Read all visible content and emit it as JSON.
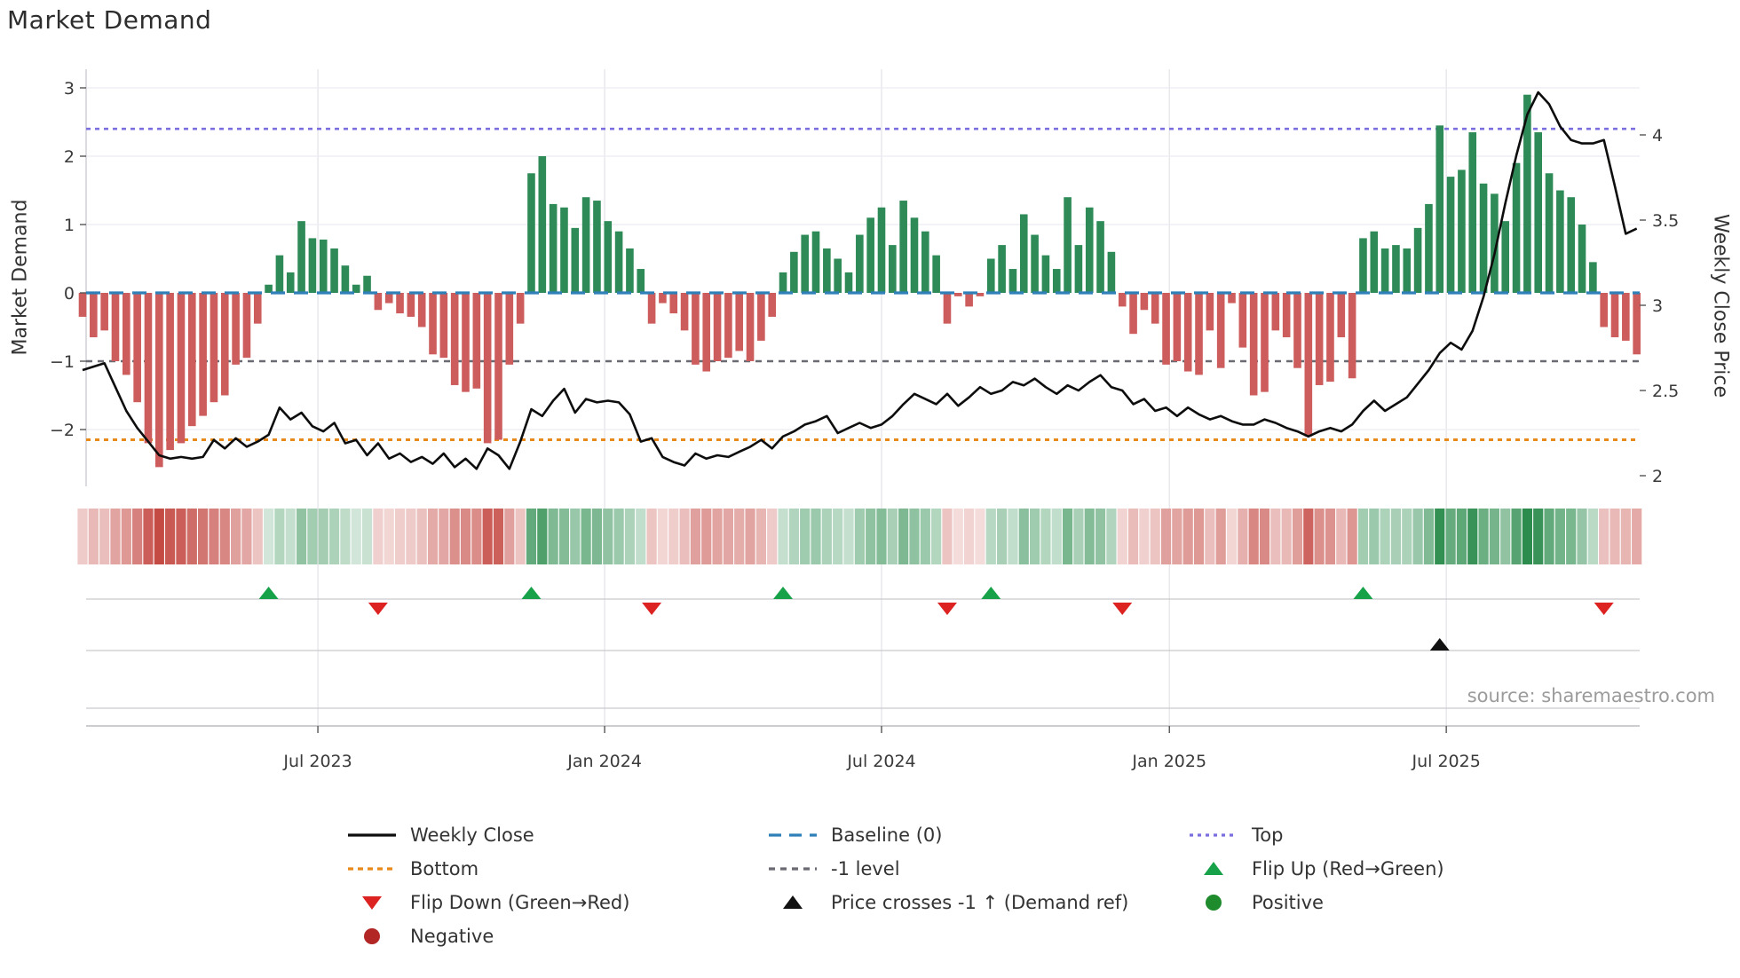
{
  "title": "Market Demand",
  "source_text": "source: sharemaestro.com",
  "chart_data": {
    "type": "bar+line",
    "title": "Market Demand",
    "ylabel_left": "Market Demand",
    "ylabel_right": "Weekly Close Price",
    "grid": true,
    "legend_position": "bottom",
    "ylim_left": [
      -2.83,
      3.27
    ],
    "ylim_right": [
      1.93,
      4.39
    ],
    "yticks_left": [
      "3",
      "2",
      "1",
      "0",
      "−1",
      "−2"
    ],
    "yticks_left_values": [
      3,
      2,
      1,
      0,
      -1,
      -2
    ],
    "yticks_right": [
      "4",
      "3.5",
      "3",
      "2.5",
      "2"
    ],
    "yticks_right_values": [
      4,
      3.5,
      3,
      2.5,
      2
    ],
    "x_axis": {
      "tick_labels": [
        "Jul 2023",
        "Jan 2024",
        "Jul 2024",
        "Jan 2025",
        "Jul 2025"
      ],
      "tick_weeks": [
        21.5,
        47.7,
        73.0,
        99.3,
        124.6
      ]
    },
    "levels": {
      "baseline": 0,
      "top": 2.4,
      "bottom": -2.15,
      "minus1": -1
    },
    "series": [
      {
        "name": "Market Demand (weekly bars)",
        "values": [
          -0.35,
          -0.65,
          -0.55,
          -1.0,
          -1.2,
          -1.6,
          -2.2,
          -2.55,
          -2.3,
          -2.2,
          -1.95,
          -1.8,
          -1.6,
          -1.5,
          -1.05,
          -0.95,
          -0.45,
          0.12,
          0.55,
          0.3,
          1.05,
          0.8,
          0.78,
          0.65,
          0.4,
          0.12,
          0.25,
          -0.25,
          -0.15,
          -0.3,
          -0.35,
          -0.5,
          -0.9,
          -0.95,
          -1.35,
          -1.45,
          -1.4,
          -2.2,
          -2.15,
          -1.05,
          -0.45,
          1.75,
          2.0,
          1.3,
          1.25,
          0.95,
          1.4,
          1.35,
          1.05,
          0.9,
          0.65,
          0.35,
          -0.45,
          -0.15,
          -0.3,
          -0.55,
          -1.05,
          -1.15,
          -1.0,
          -0.95,
          -0.85,
          -1.0,
          -0.7,
          -0.35,
          0.3,
          0.6,
          0.85,
          0.9,
          0.65,
          0.5,
          0.3,
          0.85,
          1.1,
          1.25,
          0.7,
          1.35,
          1.1,
          0.9,
          0.55,
          -0.45,
          -0.05,
          -0.2,
          -0.05,
          0.5,
          0.7,
          0.35,
          1.15,
          0.85,
          0.55,
          0.35,
          1.4,
          0.7,
          1.25,
          1.05,
          0.6,
          -0.2,
          -0.6,
          -0.25,
          -0.45,
          -1.05,
          -1.0,
          -1.15,
          -1.2,
          -0.55,
          -1.1,
          -0.15,
          -0.8,
          -1.5,
          -1.45,
          -0.55,
          -0.65,
          -1.1,
          -2.1,
          -1.35,
          -1.3,
          -0.65,
          -1.25,
          0.8,
          0.9,
          0.65,
          0.7,
          0.65,
          0.95,
          1.3,
          2.45,
          1.7,
          1.8,
          2.35,
          1.6,
          1.45,
          1.05,
          1.9,
          2.9,
          2.35,
          1.75,
          1.5,
          1.4,
          1.0,
          0.45,
          -0.5,
          -0.65,
          -0.7,
          -0.9
        ]
      },
      {
        "name": "Weekly Close",
        "values": [
          2.62,
          2.64,
          2.66,
          2.52,
          2.38,
          2.28,
          2.2,
          2.12,
          2.1,
          2.11,
          2.1,
          2.11,
          2.21,
          2.16,
          2.22,
          2.17,
          2.2,
          2.24,
          2.4,
          2.33,
          2.37,
          2.29,
          2.26,
          2.31,
          2.19,
          2.21,
          2.12,
          2.19,
          2.1,
          2.13,
          2.08,
          2.11,
          2.07,
          2.13,
          2.05,
          2.1,
          2.04,
          2.16,
          2.12,
          2.04,
          2.2,
          2.39,
          2.35,
          2.44,
          2.51,
          2.37,
          2.45,
          2.43,
          2.44,
          2.43,
          2.36,
          2.2,
          2.22,
          2.11,
          2.08,
          2.06,
          2.13,
          2.1,
          2.12,
          2.11,
          2.14,
          2.17,
          2.21,
          2.16,
          2.23,
          2.26,
          2.3,
          2.32,
          2.35,
          2.25,
          2.28,
          2.31,
          2.28,
          2.3,
          2.35,
          2.42,
          2.48,
          2.45,
          2.42,
          2.48,
          2.41,
          2.46,
          2.52,
          2.48,
          2.5,
          2.55,
          2.53,
          2.57,
          2.52,
          2.48,
          2.53,
          2.5,
          2.55,
          2.59,
          2.52,
          2.5,
          2.42,
          2.45,
          2.38,
          2.4,
          2.35,
          2.4,
          2.36,
          2.33,
          2.35,
          2.32,
          2.3,
          2.3,
          2.33,
          2.31,
          2.28,
          2.26,
          2.23,
          2.26,
          2.28,
          2.26,
          2.3,
          2.38,
          2.44,
          2.38,
          2.42,
          2.46,
          2.54,
          2.62,
          2.72,
          2.78,
          2.74,
          2.85,
          3.05,
          3.3,
          3.6,
          3.88,
          4.12,
          4.25,
          4.18,
          4.05,
          3.97,
          3.95,
          3.95,
          3.97,
          3.7,
          3.42,
          3.45
        ]
      }
    ],
    "markers": {
      "flip_up_weeks": [
        17,
        41,
        64,
        83,
        117
      ],
      "flip_down_weeks": [
        27,
        52,
        79,
        95,
        139
      ],
      "price_cross_up_weeks": [
        124
      ]
    },
    "heatmap_note": "strip below plot mirrors bar sign/intensity per week"
  },
  "colors": {
    "bar_positive": "#2e8b57",
    "bar_negative": "#cd5c5c",
    "price_line": "#0d0d0d",
    "baseline": "#2f7fb8",
    "top_level": "#7b6fe0",
    "bottom_level": "#e8891a",
    "minus1_level": "#6a6a72",
    "flip_up": "#17a24a",
    "flip_down": "#dd2222",
    "price_cross": "#111111",
    "negative_dot": "#b22626",
    "positive_dot": "#1e8b2d",
    "heat_red": "#c44a44",
    "heat_green": "#2b8c4d",
    "grid": "#ececf2",
    "vgrid": "#e3e3e8",
    "spine": "#bcbcc2",
    "tick_text": "#3a3a3a"
  },
  "legend": {
    "columns": [
      {
        "items": [
          {
            "type": "line",
            "color": "#0d0d0d",
            "dash": "",
            "label": "Weekly Close"
          },
          {
            "type": "dash",
            "color": "#e8891a",
            "dash": "6,5",
            "label": "Bottom"
          },
          {
            "type": "tri_down",
            "color": "#dd2222",
            "dash": "",
            "label": "Flip Down (Green→Red)"
          },
          {
            "type": "dot",
            "color": "#b22626",
            "dash": "",
            "label": "Negative"
          }
        ]
      },
      {
        "items": [
          {
            "type": "dash",
            "color": "#2f7fb8",
            "dash": "14,9",
            "label": "Baseline (0)"
          },
          {
            "type": "dash",
            "color": "#6a6a72",
            "dash": "7,6",
            "label": "-1 level"
          },
          {
            "type": "tri_up",
            "color": "#111111",
            "dash": "",
            "label": "Price crosses -1 ↑ (Demand ref)"
          }
        ]
      },
      {
        "items": [
          {
            "type": "dash",
            "color": "#7b6fe0",
            "dash": "4,5",
            "label": "Top"
          },
          {
            "type": "tri_up",
            "color": "#17a24a",
            "dash": "",
            "label": "Flip Up (Red→Green)"
          },
          {
            "type": "dot",
            "color": "#1e8b2d",
            "dash": "",
            "label": "Positive"
          }
        ]
      }
    ]
  }
}
